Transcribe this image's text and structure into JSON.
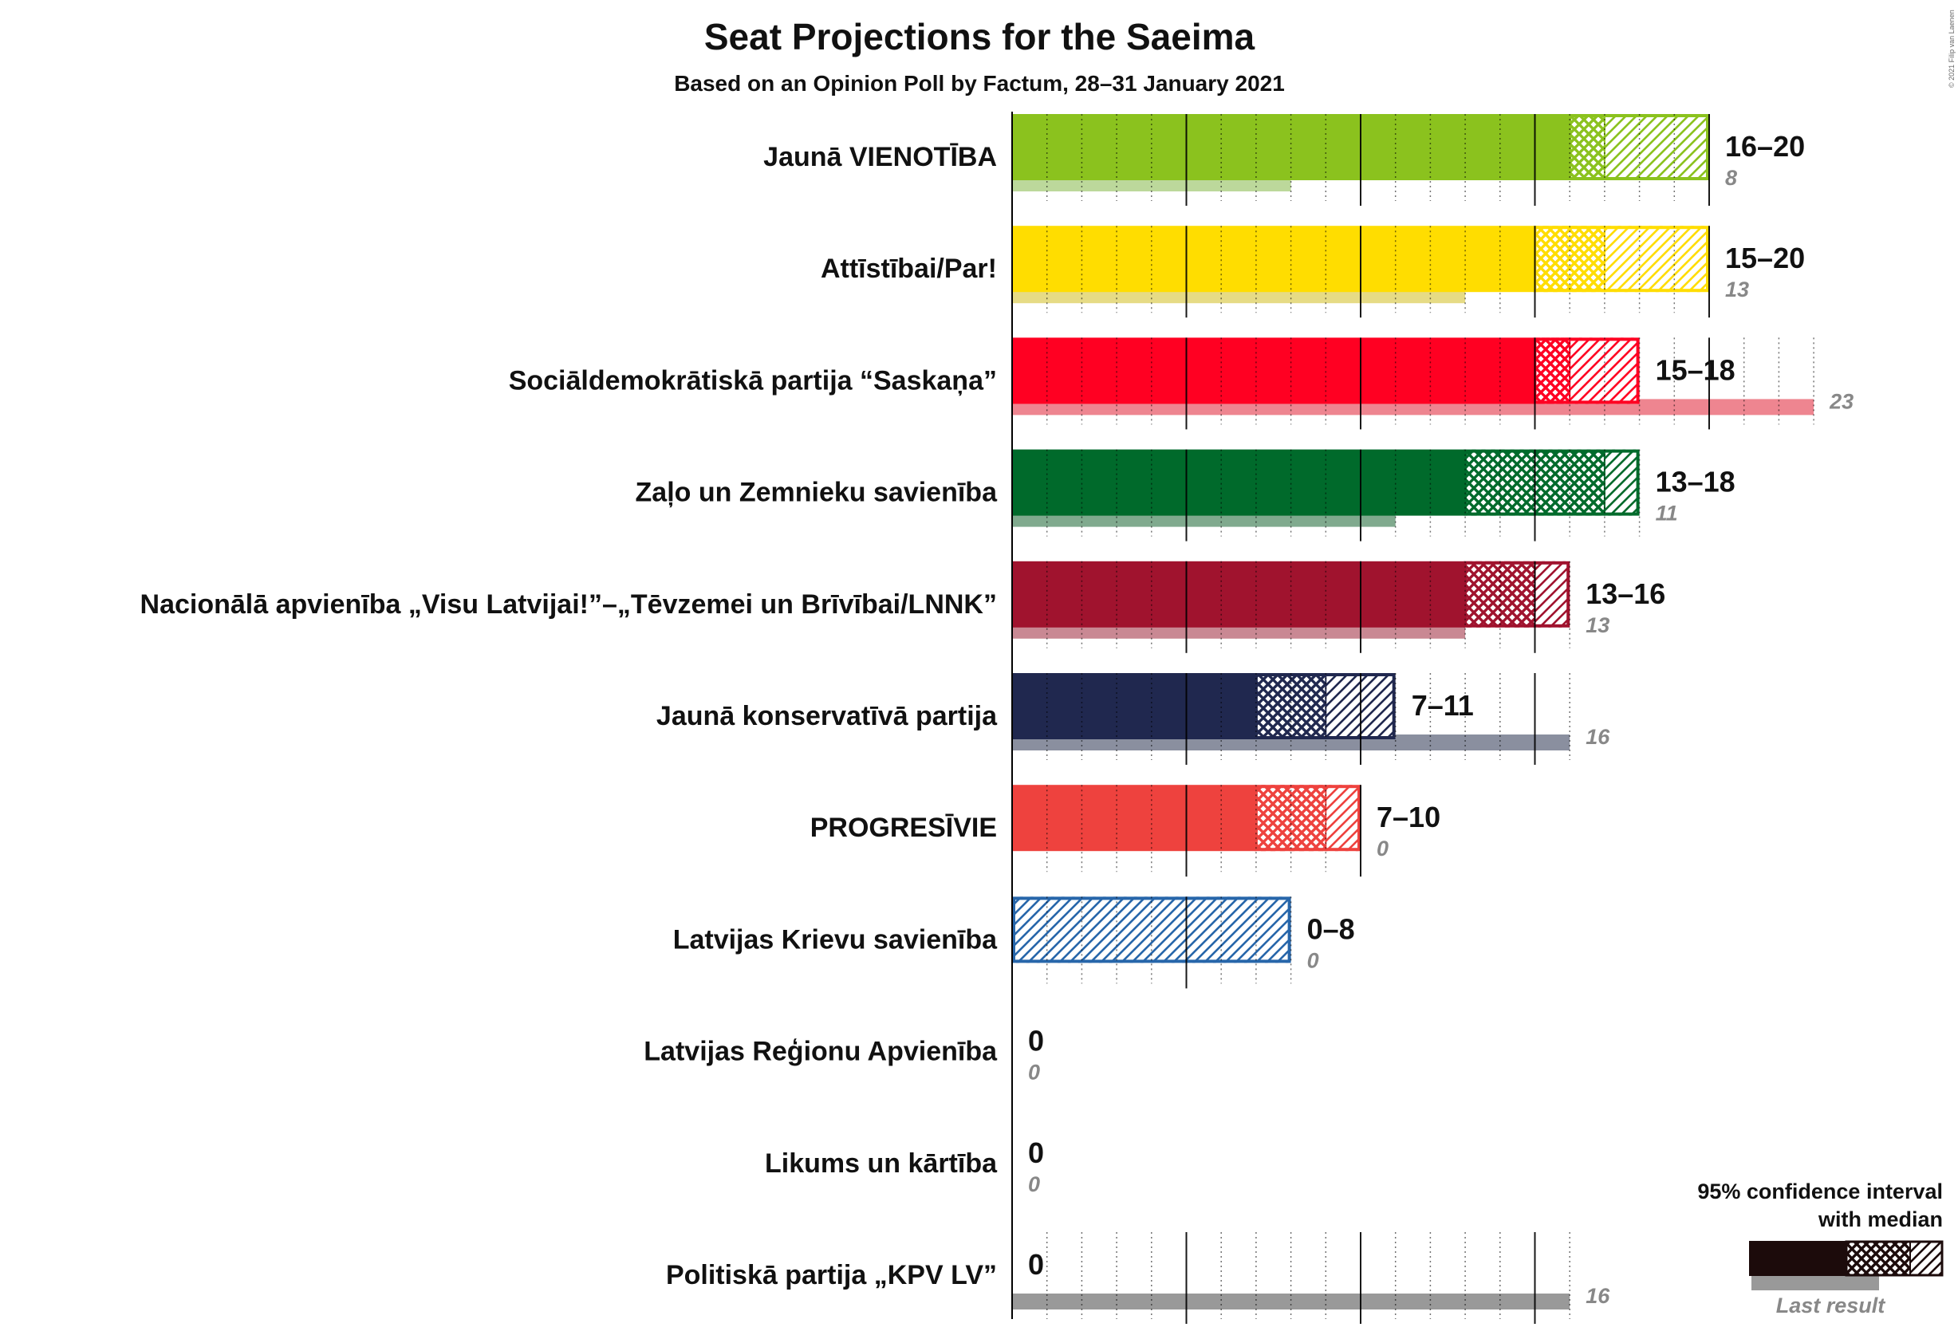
{
  "chart_data": {
    "type": "bar",
    "title": "Seat Projections for the Saeima",
    "subtitle": "Based on an Opinion Poll by Factum, 28–31 January 2021",
    "copyright": "© 2021 Filip van Laenen",
    "parties": [
      {
        "name": "Jaunā VIENOTĪBA",
        "low": 16,
        "median": 17,
        "high": 20,
        "range_label": "16–20",
        "last": 8,
        "last_label": "8",
        "color": "#8BC21E",
        "last_color": "#BCD89B",
        "outline": false
      },
      {
        "name": "Attīstībai/Par!",
        "low": 15,
        "median": 17,
        "high": 20,
        "range_label": "15–20",
        "last": 13,
        "last_label": "13",
        "color": "#FFDD00",
        "last_color": "#E6DB85",
        "outline": false
      },
      {
        "name": "Sociāldemokrātiskā partija “Saskaņa”",
        "low": 15,
        "median": 16,
        "high": 18,
        "range_label": "15–18",
        "last": 23,
        "last_label": "23",
        "color": "#FF0022",
        "last_color": "#EE8590",
        "outline": false
      },
      {
        "name": "Zaļo un Zemnieku savienība",
        "low": 13,
        "median": 17,
        "high": 18,
        "range_label": "13–18",
        "last": 11,
        "last_label": "11",
        "color": "#006A2B",
        "last_color": "#80AA8E",
        "outline": false
      },
      {
        "name": "Nacionālā apvienība „Visu Latvijai!”–„Tēvzemei un Brīvībai/LNNK”",
        "low": 13,
        "median": 15,
        "high": 16,
        "range_label": "13–16",
        "last": 13,
        "last_label": "13",
        "color": "#A0132E",
        "last_color": "#C98893",
        "outline": false
      },
      {
        "name": "Jaunā konservatīvā partija",
        "low": 7,
        "median": 9,
        "high": 11,
        "range_label": "7–11",
        "last": 16,
        "last_label": "16",
        "color": "#20284F",
        "last_color": "#8A8F9F",
        "outline": false
      },
      {
        "name": "PROGRESĪVIE",
        "low": 7,
        "median": 9,
        "high": 10,
        "range_label": "7–10",
        "last": 0,
        "last_label": "0",
        "color": "#EE423E",
        "last_color": "#F3A09E",
        "outline": false
      },
      {
        "name": "Latvijas Krievu savienība",
        "low": 0,
        "median": 0,
        "high": 8,
        "range_label": "0–8",
        "last": 0,
        "last_label": "0",
        "color": "#2766AA",
        "last_color": "#93B2D4",
        "outline": true
      },
      {
        "name": "Latvijas Reģionu Apvienība",
        "low": 0,
        "median": 0,
        "high": 0,
        "range_label": "0",
        "last": 0,
        "last_label": "0",
        "color": "#555555",
        "last_color": "#999999",
        "outline": false
      },
      {
        "name": "Likums un kārtība",
        "low": 0,
        "median": 0,
        "high": 0,
        "range_label": "0",
        "last": 0,
        "last_label": "0",
        "color": "#555555",
        "last_color": "#999999",
        "outline": false
      },
      {
        "name": "Politiskā partija „KPV LV”",
        "low": 0,
        "median": 0,
        "high": 0,
        "range_label": "0",
        "last": 16,
        "last_label": "16",
        "color": "#555555",
        "last_color": "#999999",
        "outline": false
      }
    ],
    "xlim": [
      0,
      20
    ],
    "major_gridlines": [
      5,
      10,
      15,
      20
    ],
    "legend": {
      "title_line1": "95% confidence interval",
      "title_line2": "with median",
      "last_label": "Last result",
      "color": "#1C0B0B",
      "last_color": "#999999",
      "position": "bottom-right"
    }
  }
}
